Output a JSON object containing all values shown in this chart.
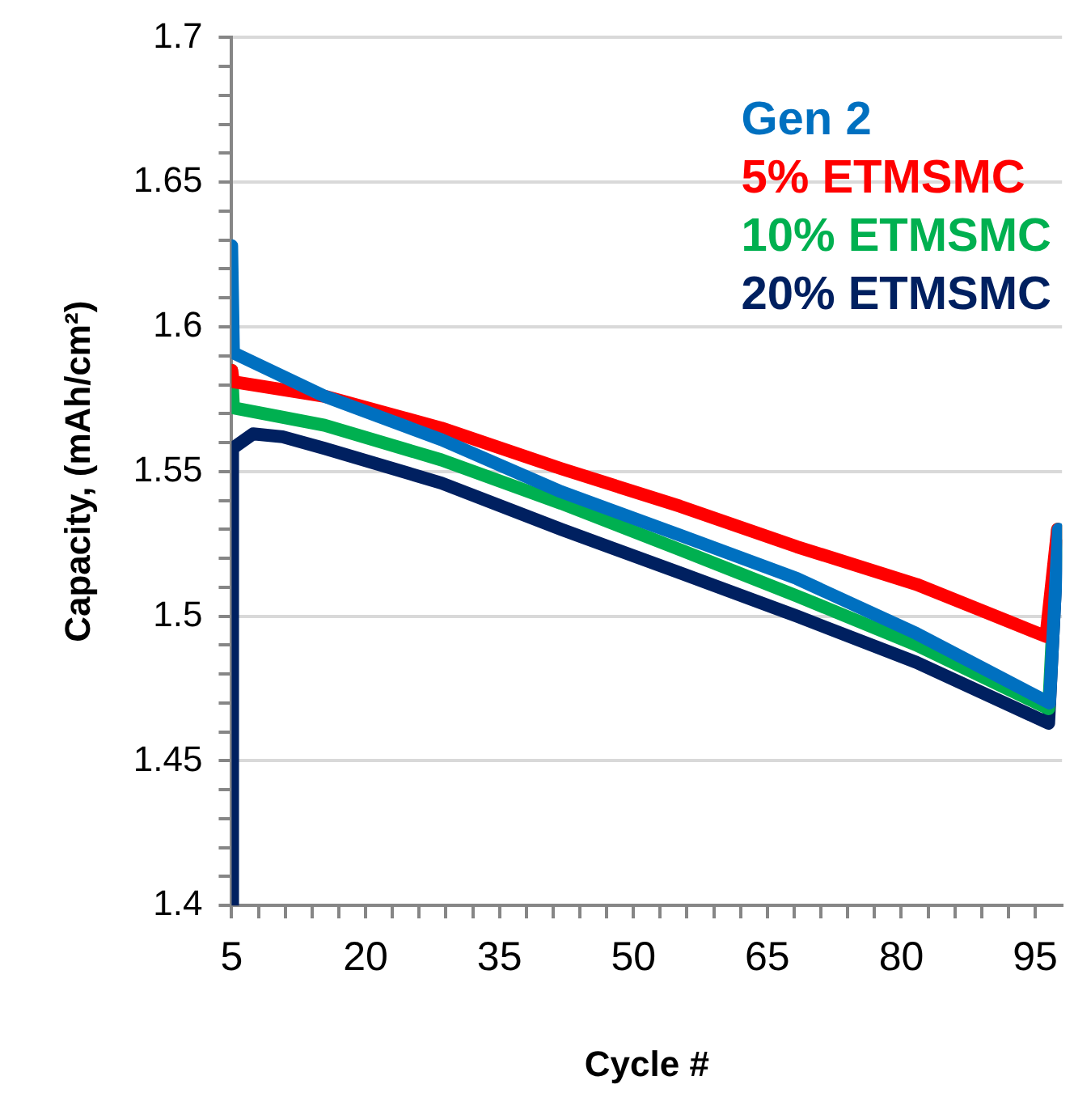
{
  "chart_data": {
    "type": "line",
    "xlabel": "Cycle #",
    "ylabel": "Capacity, (mAh/cm²)",
    "xlim": [
      5,
      98
    ],
    "ylim": [
      1.4,
      1.7
    ],
    "xticks": [
      5,
      {
        "value": 8,
        "label": null
      },
      {
        "value": 11,
        "label": null
      },
      {
        "value": 14,
        "label": null
      },
      {
        "value": 17,
        "label": null
      },
      20,
      {
        "value": 23,
        "label": null
      },
      {
        "value": 26,
        "label": null
      },
      {
        "value": 29,
        "label": null
      },
      {
        "value": 32,
        "label": null
      },
      35,
      {
        "value": 38,
        "label": null
      },
      {
        "value": 41,
        "label": null
      },
      {
        "value": 44,
        "label": null
      },
      {
        "value": 47,
        "label": null
      },
      50,
      {
        "value": 53,
        "label": null
      },
      {
        "value": 56,
        "label": null
      },
      {
        "value": 59,
        "label": null
      },
      {
        "value": 62,
        "label": null
      },
      65,
      {
        "value": 68,
        "label": null
      },
      {
        "value": 71,
        "label": null
      },
      {
        "value": 74,
        "label": null
      },
      {
        "value": 77,
        "label": null
      },
      80,
      {
        "value": 83,
        "label": null
      },
      {
        "value": 86,
        "label": null
      },
      {
        "value": 89,
        "label": null
      },
      {
        "value": 92,
        "label": null
      },
      95
    ],
    "yticks": [
      1.4,
      {
        "value": 1.41,
        "label": null
      },
      {
        "value": 1.42,
        "label": null
      },
      {
        "value": 1.43,
        "label": null
      },
      {
        "value": 1.44,
        "label": null
      },
      1.45,
      {
        "value": 1.46,
        "label": null
      },
      {
        "value": 1.47,
        "label": null
      },
      {
        "value": 1.48,
        "label": null
      },
      {
        "value": 1.49,
        "label": null
      },
      1.5,
      {
        "value": 1.51,
        "label": null
      },
      {
        "value": 1.52,
        "label": null
      },
      {
        "value": 1.53,
        "label": null
      },
      {
        "value": 1.54,
        "label": null
      },
      1.55,
      {
        "value": 1.56,
        "label": null
      },
      {
        "value": 1.57,
        "label": null
      },
      {
        "value": 1.58,
        "label": null
      },
      {
        "value": 1.59,
        "label": null
      },
      1.6,
      {
        "value": 1.61,
        "label": null
      },
      {
        "value": 1.62,
        "label": null
      },
      {
        "value": 1.63,
        "label": null
      },
      {
        "value": 1.64,
        "label": null
      },
      1.65,
      {
        "value": 1.66,
        "label": null
      },
      {
        "value": 1.67,
        "label": null
      },
      {
        "value": 1.68,
        "label": null
      },
      {
        "value": 1.69,
        "label": null
      },
      1.7
    ],
    "grid": "y",
    "legend": "top right",
    "marker": "none",
    "line_style": "solid",
    "series": [
      {
        "name": "Gen 2",
        "color": "#0070c0",
        "x": [
          5,
          5.2,
          15.4,
          28.5,
          41.9,
          55.2,
          68.3,
          81.7,
          96.6,
          97.6,
          98
        ],
        "values": [
          1.628,
          1.591,
          1.576,
          1.561,
          1.543,
          1.528,
          1.513,
          1.494,
          1.47,
          1.53,
          1.528
        ]
      },
      {
        "name": "5% ETMSMC",
        "color": "#ff0000",
        "x": [
          5,
          5.2,
          15.4,
          28.5,
          41.9,
          55.2,
          68.3,
          81.7,
          96.2,
          97.5,
          98
        ],
        "values": [
          1.585,
          1.581,
          1.576,
          1.565,
          1.551,
          1.538,
          1.524,
          1.511,
          1.493,
          1.53,
          1.528
        ]
      },
      {
        "name": "10% ETMSMC",
        "color": "#00b050",
        "x": [
          5,
          5.2,
          15.4,
          28.5,
          41.9,
          55.2,
          68.3,
          81.7,
          96.5,
          97.5,
          98
        ],
        "values": [
          1.585,
          1.572,
          1.566,
          1.554,
          1.539,
          1.523,
          1.507,
          1.49,
          1.468,
          1.53,
          1.528
        ]
      },
      {
        "name": "20% ETMSMC",
        "color": "#002060",
        "x": [
          5,
          5.1,
          7.4,
          10.7,
          15.4,
          28.5,
          41.9,
          55.2,
          68.3,
          81.7,
          96.5,
          97.5,
          98
        ],
        "values": [
          1.4,
          1.558,
          1.563,
          1.562,
          1.558,
          1.546,
          1.53,
          1.515,
          1.5,
          1.484,
          1.463,
          1.525,
          1.523
        ]
      }
    ]
  }
}
